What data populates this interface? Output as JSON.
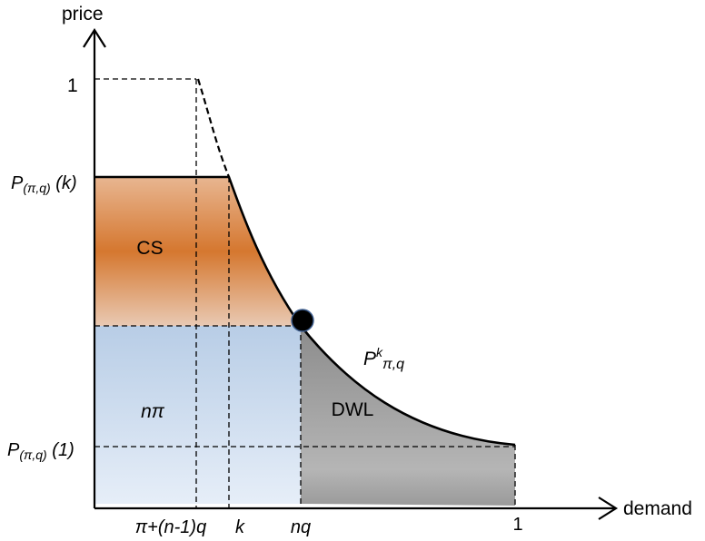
{
  "axes": {
    "y_label": "price",
    "x_label": "demand"
  },
  "y_ticks": {
    "one": "1",
    "p_k": {
      "base": "P",
      "sub": "(π,q)",
      "arg": " (k)"
    },
    "p_1": {
      "base": "P",
      "sub": "(π,q)",
      "arg": " (1)"
    }
  },
  "x_ticks": {
    "pi_term": "π+(n-1)q",
    "k": "k",
    "nq": "nq",
    "one": "1"
  },
  "regions": {
    "cs": "CS",
    "n_pi": "nπ",
    "dwl": "DWL"
  },
  "curve_label": {
    "base": "P",
    "sup": "k",
    "sub": "π,q"
  },
  "colors": {
    "cs_fill": "#d07a3a",
    "npi_fill": "#b8cde6",
    "dwl_fill": "#8e8e8e"
  }
}
